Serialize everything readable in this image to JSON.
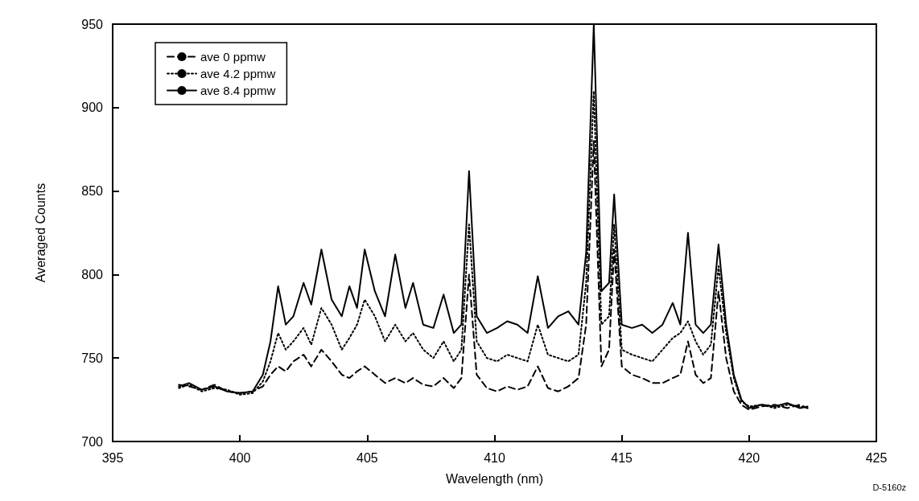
{
  "chart_data": {
    "type": "line",
    "xlabel": "Wavelength (nm)",
    "ylabel": "Averaged Counts",
    "annotations": [
      "D-5160z"
    ],
    "x": [
      397.6,
      398.0,
      398.5,
      399.0,
      399.5,
      400.0,
      400.5,
      400.9,
      401.2,
      401.5,
      401.8,
      402.1,
      402.5,
      402.8,
      403.2,
      403.6,
      404.0,
      404.3,
      404.6,
      404.9,
      405.3,
      405.7,
      406.1,
      406.5,
      406.8,
      407.2,
      407.6,
      408.0,
      408.4,
      408.7,
      409.0,
      409.3,
      409.7,
      410.1,
      410.5,
      410.9,
      411.3,
      411.7,
      412.1,
      412.5,
      412.9,
      413.3,
      413.6,
      413.9,
      414.2,
      414.5,
      414.7,
      415.0,
      415.4,
      415.8,
      416.2,
      416.6,
      417.0,
      417.3,
      417.6,
      417.9,
      418.2,
      418.5,
      418.8,
      419.1,
      419.4,
      419.7,
      420.0,
      420.5,
      421.0,
      421.5,
      422.0,
      422.3
    ],
    "series": [
      {
        "name": "ave 0 ppmw",
        "color": "#000000",
        "line_style": "dashed",
        "values": [
          734,
          733,
          731,
          734,
          730,
          729,
          730,
          733,
          740,
          745,
          742,
          748,
          752,
          745,
          755,
          748,
          740,
          738,
          742,
          745,
          740,
          735,
          738,
          735,
          738,
          734,
          733,
          738,
          732,
          738,
          800,
          740,
          732,
          730,
          733,
          731,
          733,
          745,
          732,
          730,
          733,
          738,
          770,
          880,
          745,
          755,
          815,
          745,
          740,
          738,
          735,
          735,
          738,
          740,
          760,
          740,
          735,
          738,
          790,
          750,
          730,
          722,
          719,
          721,
          722,
          720,
          722,
          720
        ]
      },
      {
        "name": "ave 4.2 ppmw",
        "color": "#000000",
        "line_style": "dotted",
        "values": [
          732,
          734,
          730,
          732,
          731,
          728,
          729,
          736,
          748,
          765,
          755,
          760,
          768,
          758,
          780,
          770,
          755,
          762,
          770,
          785,
          775,
          760,
          770,
          760,
          765,
          755,
          750,
          760,
          748,
          755,
          830,
          760,
          750,
          748,
          752,
          750,
          748,
          770,
          752,
          750,
          748,
          752,
          795,
          910,
          770,
          775,
          830,
          755,
          752,
          750,
          748,
          755,
          762,
          765,
          772,
          760,
          752,
          758,
          805,
          765,
          738,
          724,
          721,
          722,
          720,
          722,
          721,
          720
        ]
      },
      {
        "name": "ave 8.4 ppmw",
        "color": "#000000",
        "line_style": "solid",
        "values": [
          733,
          735,
          731,
          733,
          730,
          729,
          730,
          740,
          760,
          793,
          770,
          775,
          795,
          782,
          815,
          785,
          775,
          793,
          780,
          815,
          790,
          775,
          812,
          780,
          795,
          770,
          768,
          788,
          765,
          770,
          862,
          775,
          765,
          768,
          772,
          770,
          765,
          799,
          768,
          775,
          778,
          770,
          813,
          950,
          790,
          795,
          848,
          770,
          768,
          770,
          765,
          770,
          783,
          770,
          825,
          770,
          765,
          770,
          818,
          770,
          740,
          725,
          720,
          722,
          721,
          723,
          720,
          721
        ]
      }
    ],
    "xlim": [
      395,
      425
    ],
    "xticks": [
      395,
      400,
      405,
      410,
      415,
      420,
      425
    ],
    "ylim": [
      700,
      950
    ],
    "yticks": [
      700,
      750,
      800,
      850,
      900,
      950
    ],
    "grid": false,
    "legend": "top left",
    "marker": "none"
  }
}
